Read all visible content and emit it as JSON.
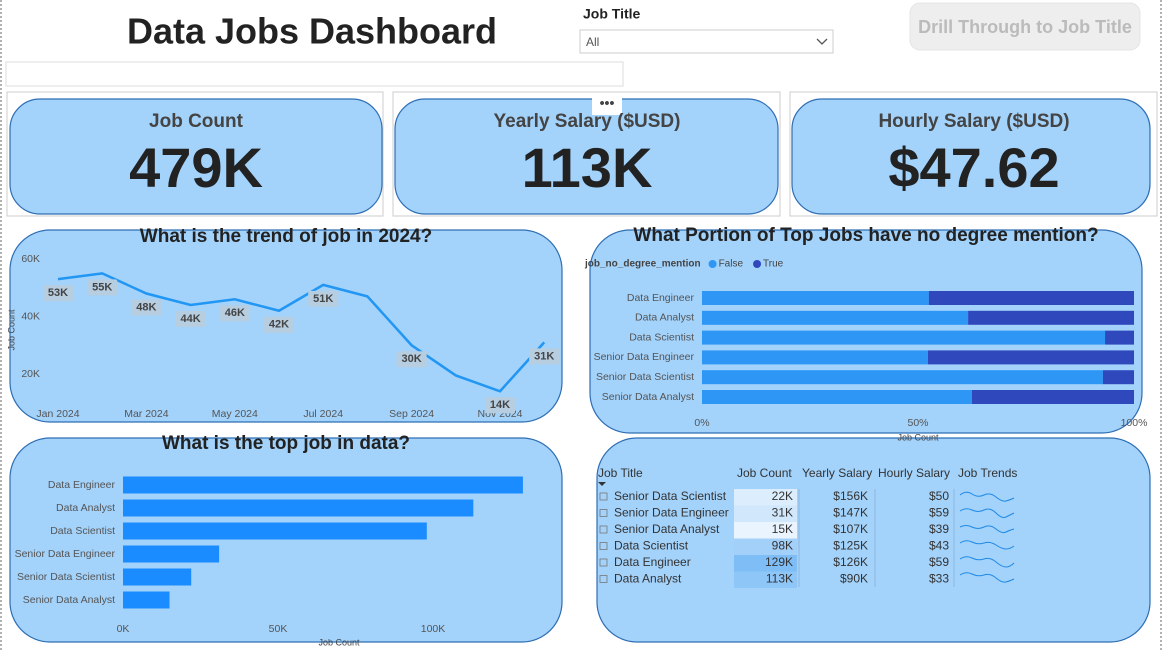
{
  "header": {
    "title": "Data Jobs Dashboard",
    "filter_label": "Job Title",
    "filter_value": "All",
    "button": "Drill Through to Job Title"
  },
  "kpis": [
    {
      "label": "Job Count",
      "value": "479K"
    },
    {
      "label": "Yearly Salary ($USD)",
      "value": "113K"
    },
    {
      "label": "Hourly Salary ($USD)",
      "value": "$47.62"
    }
  ],
  "chart_data": [
    {
      "type": "line",
      "title": "What is the trend of job in 2024?",
      "y_label": "Job Count",
      "color": "#2196f3",
      "categories": [
        "Jan 2024",
        null,
        "Mar 2024",
        null,
        "May 2024",
        null,
        "Jul 2024",
        null,
        "Sep 2024",
        null,
        "Nov 2024",
        null
      ],
      "values": [
        53000,
        55000,
        48000,
        44000,
        46000,
        42000,
        51000,
        47000,
        30000,
        19500,
        14000,
        31000
      ],
      "value_labels": [
        "53K",
        "55K",
        "48K",
        "44K",
        "46K",
        "42K",
        "51K",
        null,
        "30K",
        null,
        "14K",
        "31K"
      ],
      "ylim": [
        8000,
        63000
      ],
      "yticks": [
        {
          "value": 20000,
          "label": "20K"
        },
        {
          "value": 40000,
          "label": "40K"
        },
        {
          "value": 60000,
          "label": "60K"
        }
      ]
    },
    {
      "type": "bar",
      "orientation": "horizontal",
      "stacked": true,
      "title": "What Portion of Top Jobs have no degree mention?",
      "legend_title": "job_no_degree_mention",
      "x_label": "Job Count",
      "categories": [
        "Data Engineer",
        "Data Analyst",
        "Data Scientist",
        "Senior Data Engineer",
        "Senior Data Scientist",
        "Senior Data Analyst"
      ],
      "series": [
        {
          "name": "False",
          "color": "#2e97f5",
          "values": [
            52.5,
            61.6,
            93.3,
            52.3,
            92.8,
            62.5
          ]
        },
        {
          "name": "True",
          "color": "#2f49bd",
          "values": [
            47.5,
            38.4,
            6.7,
            47.7,
            7.2,
            37.5
          ]
        }
      ],
      "xlim": [
        0,
        100
      ],
      "xticks": [
        {
          "value": 0,
          "label": "0%"
        },
        {
          "value": 50,
          "label": "50%"
        },
        {
          "value": 100,
          "label": "100%"
        }
      ]
    },
    {
      "type": "bar",
      "orientation": "horizontal",
      "title": "What is the top job in data?",
      "x_label": "Job Count",
      "color": "#1a8cff",
      "categories": [
        "Data Engineer",
        "Data Analyst",
        "Data Scientist",
        "Senior Data Engineer",
        "Senior Data Scientist",
        "Senior Data Analyst"
      ],
      "values": [
        129000,
        113000,
        98000,
        31000,
        22000,
        15000
      ],
      "xlim": [
        0,
        135000
      ],
      "xticks": [
        {
          "value": 0,
          "label": "0K"
        },
        {
          "value": 50000,
          "label": "50K"
        },
        {
          "value": 100000,
          "label": "100K"
        }
      ]
    }
  ],
  "table": {
    "columns": [
      "Job Title",
      "Job Count",
      "Yearly Salary",
      "Hourly Salary",
      "Job Trends"
    ],
    "rows": [
      [
        "Senior Data Scientist",
        "22K",
        "$156K",
        "$50"
      ],
      [
        "Senior Data Engineer",
        "31K",
        "$147K",
        "$59"
      ],
      [
        "Senior Data Analyst",
        "15K",
        "$107K",
        "$39"
      ],
      [
        "Data Scientist",
        "98K",
        "$125K",
        "$43"
      ],
      [
        "Data Engineer",
        "129K",
        "$126K",
        "$59"
      ],
      [
        "Data Analyst",
        "113K",
        "$90K",
        "$33"
      ]
    ],
    "job_count_colors": [
      "#dcedfd",
      "#d0e7fc",
      "#eaf4fe",
      "#a3d0f9",
      "#7fbdf6",
      "#8fc6f8"
    ]
  }
}
